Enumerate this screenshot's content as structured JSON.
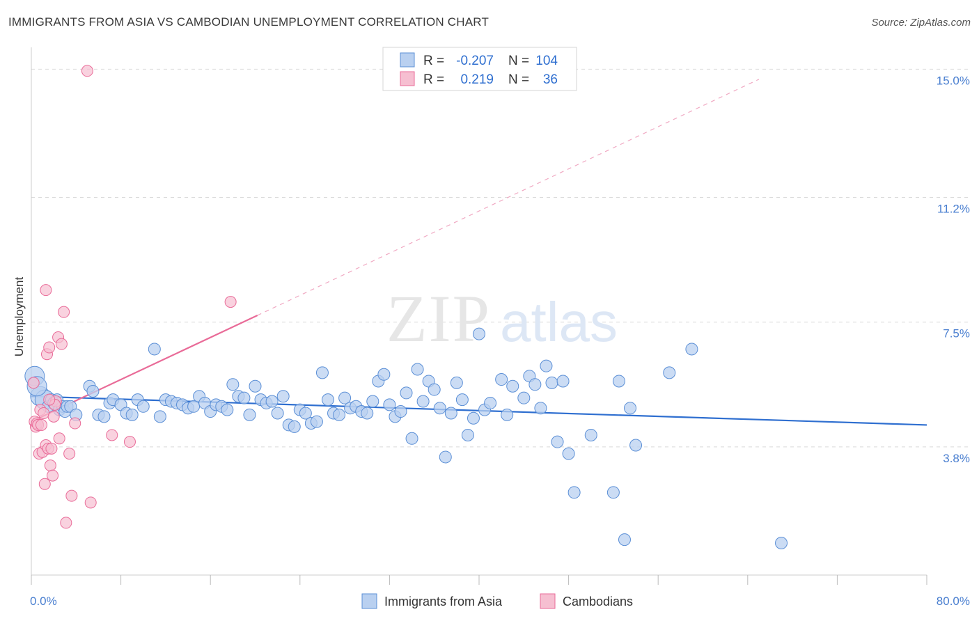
{
  "title": "IMMIGRANTS FROM ASIA VS CAMBODIAN UNEMPLOYMENT CORRELATION CHART",
  "source": "Source: ZipAtlas.com",
  "colors": {
    "blue": "#5b8fd6",
    "blue_fill": "#b9d0f0",
    "blue_line": "#2f6fd0",
    "pink": "#e96b98",
    "pink_fill": "#f6bfd1",
    "grid": "#d9d9d9",
    "tick_text": "#4a7fd0"
  },
  "legend": {
    "rows": [
      {
        "r_label": "R =",
        "r_value": "-0.207",
        "n_label": "N =",
        "n_value": "104"
      },
      {
        "r_label": "R =",
        "r_value": "0.219",
        "n_label": "N =",
        "n_value": "36"
      }
    ]
  },
  "bottom_legend": [
    "Immigrants from Asia",
    "Cambodians"
  ],
  "chart_data": {
    "type": "scatter",
    "title": "IMMIGRANTS FROM ASIA VS CAMBODIAN UNEMPLOYMENT CORRELATION CHART",
    "xlabel": "",
    "ylabel": "Unemployment",
    "xlim": [
      0,
      80
    ],
    "ylim": [
      0,
      15.4
    ],
    "x_ticks": [
      0,
      8,
      16,
      24,
      32,
      40,
      48,
      56,
      64,
      72,
      80
    ],
    "x_tick_labels": [
      "0.0%",
      "80.0%"
    ],
    "y_ticks": [
      3.8,
      7.5,
      11.2,
      15.0
    ],
    "y_tick_labels": [
      "3.8%",
      "7.5%",
      "11.2%",
      "15.0%"
    ],
    "grid": true,
    "legend_position": "top-center",
    "series": [
      {
        "name": "Immigrants from Asia",
        "color": "#5b8fd6",
        "trend": {
          "x": [
            0,
            80
          ],
          "y": [
            5.3,
            4.45
          ]
        },
        "points": [
          [
            0.3,
            5.9
          ],
          [
            0.8,
            5.3
          ],
          [
            1.2,
            5.2
          ],
          [
            1.5,
            5.0
          ],
          [
            1.8,
            5.2
          ],
          [
            2.0,
            5.1
          ],
          [
            2.3,
            5.2
          ],
          [
            2.5,
            4.9
          ],
          [
            2.8,
            5.0
          ],
          [
            3.0,
            4.85
          ],
          [
            3.2,
            5.0
          ],
          [
            3.5,
            5.0
          ],
          [
            4.0,
            4.75
          ],
          [
            5.2,
            5.6
          ],
          [
            5.5,
            5.45
          ],
          [
            6.0,
            4.75
          ],
          [
            6.5,
            4.7
          ],
          [
            7.0,
            5.1
          ],
          [
            7.3,
            5.2
          ],
          [
            8.0,
            5.05
          ],
          [
            8.5,
            4.8
          ],
          [
            9.0,
            4.75
          ],
          [
            9.5,
            5.2
          ],
          [
            10.0,
            5.0
          ],
          [
            11.0,
            6.7
          ],
          [
            11.5,
            4.7
          ],
          [
            12.0,
            5.2
          ],
          [
            12.5,
            5.15
          ],
          [
            13.0,
            5.1
          ],
          [
            13.5,
            5.05
          ],
          [
            14.0,
            4.95
          ],
          [
            14.5,
            5.0
          ],
          [
            15.0,
            5.3
          ],
          [
            15.5,
            5.1
          ],
          [
            16.0,
            4.85
          ],
          [
            16.5,
            5.05
          ],
          [
            17.0,
            5.0
          ],
          [
            17.5,
            4.9
          ],
          [
            18.0,
            5.65
          ],
          [
            18.5,
            5.3
          ],
          [
            19.0,
            5.25
          ],
          [
            19.5,
            4.75
          ],
          [
            20.0,
            5.6
          ],
          [
            20.5,
            5.2
          ],
          [
            21.0,
            5.1
          ],
          [
            21.5,
            5.15
          ],
          [
            22.0,
            4.8
          ],
          [
            22.5,
            5.3
          ],
          [
            23.0,
            4.45
          ],
          [
            23.5,
            4.4
          ],
          [
            24.0,
            4.9
          ],
          [
            24.5,
            4.8
          ],
          [
            25.0,
            4.5
          ],
          [
            25.5,
            4.55
          ],
          [
            26.0,
            6.0
          ],
          [
            26.5,
            5.2
          ],
          [
            27.0,
            4.8
          ],
          [
            27.5,
            4.75
          ],
          [
            28.0,
            5.25
          ],
          [
            28.5,
            4.95
          ],
          [
            29.0,
            5.0
          ],
          [
            29.5,
            4.85
          ],
          [
            30.0,
            4.8
          ],
          [
            30.5,
            5.15
          ],
          [
            31.0,
            5.75
          ],
          [
            31.5,
            5.95
          ],
          [
            32.0,
            5.05
          ],
          [
            32.5,
            4.7
          ],
          [
            33.0,
            4.85
          ],
          [
            33.5,
            5.4
          ],
          [
            34.0,
            4.05
          ],
          [
            34.5,
            6.1
          ],
          [
            35.0,
            5.15
          ],
          [
            35.5,
            5.75
          ],
          [
            36.0,
            5.5
          ],
          [
            36.5,
            4.95
          ],
          [
            37.0,
            3.5
          ],
          [
            37.5,
            4.8
          ],
          [
            38.0,
            5.7
          ],
          [
            38.5,
            5.2
          ],
          [
            39.0,
            4.15
          ],
          [
            39.5,
            4.65
          ],
          [
            40.0,
            7.15
          ],
          [
            40.5,
            4.9
          ],
          [
            41.0,
            5.1
          ],
          [
            42.0,
            5.8
          ],
          [
            42.5,
            4.75
          ],
          [
            43.0,
            5.6
          ],
          [
            44.0,
            5.25
          ],
          [
            44.5,
            5.9
          ],
          [
            45.0,
            5.65
          ],
          [
            45.5,
            4.95
          ],
          [
            46.0,
            6.2
          ],
          [
            46.5,
            5.7
          ],
          [
            47.0,
            3.95
          ],
          [
            47.5,
            5.75
          ],
          [
            48.0,
            3.6
          ],
          [
            48.5,
            2.45
          ],
          [
            50.0,
            4.15
          ],
          [
            52.0,
            2.45
          ],
          [
            52.5,
            5.75
          ],
          [
            53.0,
            1.05
          ],
          [
            53.5,
            4.95
          ],
          [
            54.0,
            3.85
          ],
          [
            57.0,
            6.0
          ],
          [
            59.0,
            6.7
          ],
          [
            67.0,
            0.95
          ],
          [
            0.5,
            5.6
          ]
        ]
      },
      {
        "name": "Cambodians",
        "color": "#e96b98",
        "trend": {
          "x": [
            0,
            20.2
          ],
          "y": [
            4.55,
            7.7
          ]
        },
        "trend_dashed": {
          "x": [
            20.2,
            65
          ],
          "y": [
            7.7,
            14.7
          ]
        },
        "points": [
          [
            0.2,
            5.7
          ],
          [
            0.3,
            4.55
          ],
          [
            0.4,
            4.4
          ],
          [
            0.5,
            4.5
          ],
          [
            0.6,
            4.45
          ],
          [
            0.7,
            3.6
          ],
          [
            0.8,
            4.9
          ],
          [
            1.0,
            3.65
          ],
          [
            1.1,
            4.8
          ],
          [
            1.2,
            2.7
          ],
          [
            1.3,
            3.85
          ],
          [
            1.4,
            6.55
          ],
          [
            1.5,
            3.75
          ],
          [
            1.6,
            6.75
          ],
          [
            1.7,
            3.25
          ],
          [
            1.8,
            3.75
          ],
          [
            1.9,
            2.95
          ],
          [
            2.0,
            4.7
          ],
          [
            2.2,
            5.15
          ],
          [
            2.4,
            7.05
          ],
          [
            2.5,
            4.05
          ],
          [
            2.7,
            6.85
          ],
          [
            2.9,
            7.8
          ],
          [
            3.1,
            1.55
          ],
          [
            3.4,
            3.6
          ],
          [
            3.6,
            2.35
          ],
          [
            3.9,
            4.5
          ],
          [
            1.3,
            8.45
          ],
          [
            5.3,
            2.15
          ],
          [
            7.2,
            4.15
          ],
          [
            8.8,
            3.95
          ],
          [
            17.8,
            8.1
          ],
          [
            5.0,
            14.95
          ],
          [
            0.9,
            4.45
          ],
          [
            2.1,
            5.05
          ],
          [
            1.6,
            5.2
          ]
        ]
      }
    ]
  }
}
